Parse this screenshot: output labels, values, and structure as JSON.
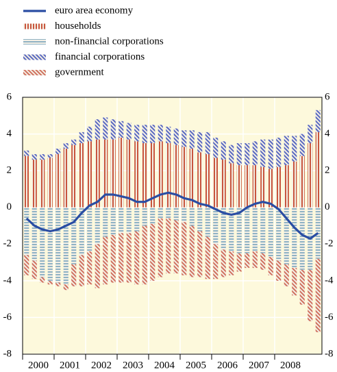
{
  "chart_data": {
    "type": "bar",
    "categories": [
      "2000",
      null,
      null,
      null,
      "2001",
      null,
      null,
      null,
      "2002",
      null,
      null,
      null,
      "2003",
      null,
      null,
      null,
      "2004",
      null,
      null,
      null,
      "2005",
      null,
      null,
      null,
      "2006",
      null,
      null,
      null,
      "2007",
      null,
      null,
      null,
      "2008",
      null,
      null,
      null,
      null,
      null
    ],
    "series": [
      {
        "name": "euro area economy",
        "type": "line",
        "color": "#2a4da3",
        "values": [
          -0.6,
          -1.0,
          -1.2,
          -1.3,
          -1.2,
          -1.0,
          -0.8,
          -0.3,
          0.1,
          0.3,
          0.7,
          0.7,
          0.6,
          0.5,
          0.3,
          0.3,
          0.5,
          0.7,
          0.8,
          0.7,
          0.5,
          0.4,
          0.2,
          0.1,
          -0.1,
          -0.3,
          -0.4,
          -0.3,
          0.0,
          0.2,
          0.3,
          0.2,
          -0.1,
          -0.6,
          -1.1,
          -1.5,
          -1.7,
          -1.4
        ]
      },
      {
        "name": "households",
        "type": "bar",
        "color": "#c8553d",
        "pattern": "vertical",
        "values": [
          2.8,
          2.6,
          2.6,
          2.7,
          2.9,
          3.2,
          3.4,
          3.5,
          3.6,
          3.7,
          3.7,
          3.7,
          3.8,
          3.7,
          3.6,
          3.5,
          3.5,
          3.6,
          3.5,
          3.4,
          3.3,
          3.2,
          3.0,
          2.9,
          2.7,
          2.6,
          2.4,
          2.3,
          2.3,
          2.3,
          2.2,
          2.1,
          2.2,
          2.3,
          2.5,
          2.8,
          3.5,
          4.1
        ]
      },
      {
        "name": "non-financial corporations",
        "type": "bar",
        "color": "#8fb2c4",
        "pattern": "horizontal",
        "values": [
          -2.6,
          -2.9,
          -3.8,
          -4.0,
          -4.1,
          -4.2,
          -3.1,
          -2.6,
          -2.4,
          -2.0,
          -1.6,
          -1.5,
          -1.4,
          -1.4,
          -1.3,
          -1.0,
          -0.9,
          -0.6,
          -0.6,
          -0.7,
          -0.8,
          -1.0,
          -1.3,
          -1.6,
          -2.0,
          -2.3,
          -2.4,
          -2.5,
          -2.5,
          -2.4,
          -2.5,
          -2.7,
          -2.9,
          -3.1,
          -3.3,
          -3.4,
          -3.4,
          -2.8
        ]
      },
      {
        "name": "financial corporations",
        "type": "bar",
        "color": "#5868c0",
        "pattern": "diagonal",
        "values": [
          0.3,
          0.3,
          0.3,
          0.2,
          0.3,
          0.3,
          0.3,
          0.6,
          0.8,
          1.1,
          1.2,
          1.1,
          0.9,
          0.9,
          0.9,
          1.0,
          1.0,
          0.9,
          0.9,
          0.9,
          0.9,
          1.0,
          1.1,
          1.2,
          1.1,
          1.0,
          1.0,
          1.2,
          1.2,
          1.3,
          1.5,
          1.6,
          1.6,
          1.6,
          1.4,
          1.2,
          1.0,
          1.2
        ]
      },
      {
        "name": "government",
        "type": "bar",
        "color": "#d0705e",
        "pattern": "diagonal",
        "values": [
          -1.1,
          -1.0,
          -0.3,
          -0.2,
          -0.2,
          -0.3,
          -1.2,
          -1.7,
          -1.8,
          -2.4,
          -2.6,
          -2.6,
          -2.7,
          -2.7,
          -2.9,
          -3.2,
          -3.1,
          -3.2,
          -3.0,
          -2.9,
          -2.9,
          -2.8,
          -2.5,
          -2.3,
          -1.9,
          -1.5,
          -1.3,
          -1.0,
          -0.8,
          -0.9,
          -0.9,
          -1.0,
          -1.1,
          -1.2,
          -1.5,
          -1.9,
          -2.8,
          -4.0
        ]
      }
    ],
    "ylim": [
      -8,
      6
    ],
    "yticks": [
      -8,
      -6,
      -4,
      -2,
      0,
      2,
      4,
      6
    ],
    "grid": true,
    "background": "#fdf9dc"
  }
}
